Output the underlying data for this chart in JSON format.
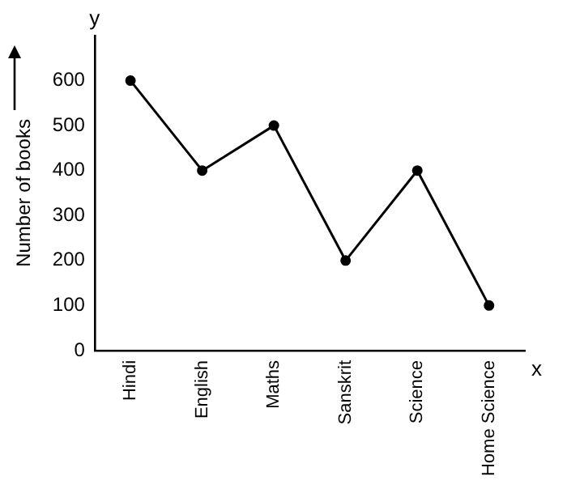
{
  "chart_data": {
    "type": "line",
    "xlabel": "x",
    "ylabel": "Number of books",
    "annotations": [
      "y"
    ],
    "categories": [
      "Hindi",
      "English",
      "Maths",
      "Sanskrit",
      "Science",
      "Home Science"
    ],
    "values": [
      600,
      400,
      500,
      200,
      400,
      100
    ],
    "color": "#000000",
    "marker": "circle",
    "line_style": "solid",
    "ylim": [
      0,
      700
    ],
    "yticks": [
      0,
      100,
      200,
      300,
      400,
      500,
      600
    ],
    "grid": false,
    "legend": false
  }
}
